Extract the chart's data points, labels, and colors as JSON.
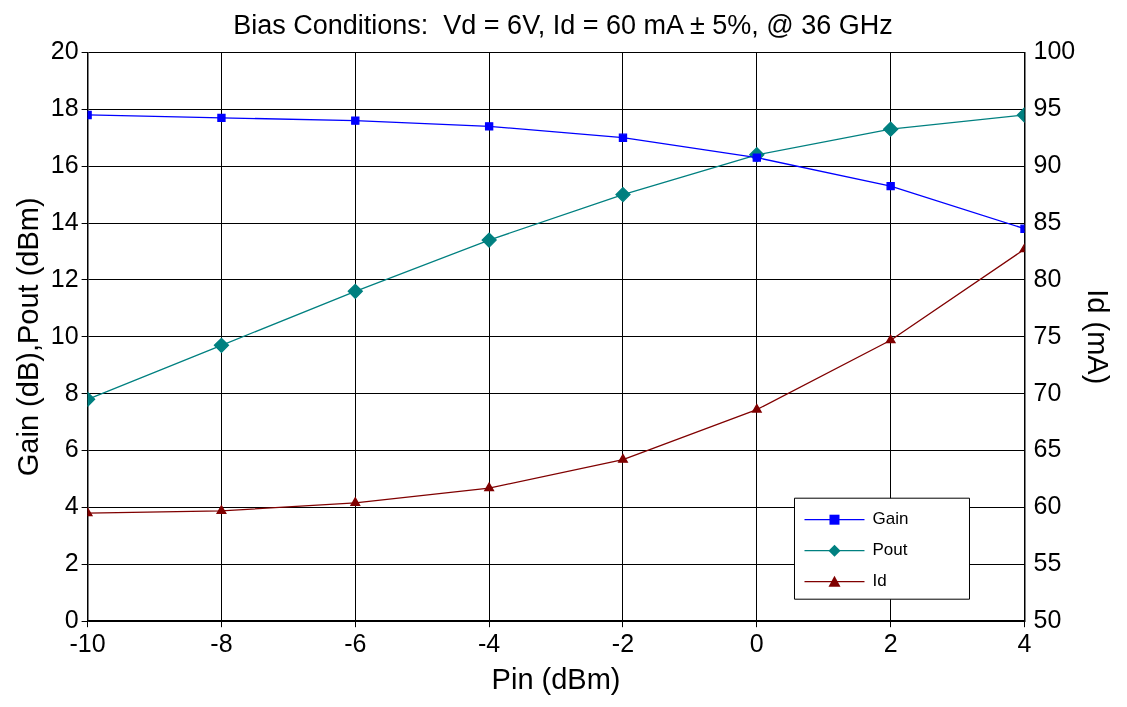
{
  "chart_data": {
    "type": "line",
    "title": "Bias Conditions:  Vd = 6V, Id = 60 mA ± 5%, @ 36 GHz",
    "xlabel": "Pin (dBm)",
    "ylabel": "Gain (dB),Pout (dBm)",
    "y2label": "Id (mA)",
    "x": [
      -10,
      -8,
      -6,
      -4,
      -2,
      0,
      2,
      4
    ],
    "series": [
      {
        "name": "Gain",
        "color": "#0000ff",
        "marker": "square",
        "values": [
          17.8,
          17.7,
          17.6,
          17.4,
          17.0,
          16.3,
          15.3,
          13.8
        ]
      },
      {
        "name": "Pout",
        "color": "#008080",
        "marker": "diamond",
        "values": [
          7.8,
          9.7,
          11.6,
          13.4,
          15.0,
          16.4,
          17.3,
          17.8
        ]
      },
      {
        "name": "Id",
        "color": "#800000",
        "marker": "triangle",
        "axis": "y2",
        "values": [
          59.5,
          59.7,
          60.4,
          61.7,
          64.2,
          68.6,
          74.7,
          82.7
        ]
      }
    ],
    "xlim": [
      -10,
      4
    ],
    "xticks": [
      -10,
      -8,
      -6,
      -4,
      -2,
      0,
      2,
      4
    ],
    "ylim": [
      0,
      20
    ],
    "yticks": [
      0,
      2,
      4,
      6,
      8,
      10,
      12,
      14,
      16,
      18,
      20
    ],
    "y2lim": [
      50,
      100
    ],
    "y2ticks": [
      50,
      55,
      60,
      65,
      70,
      75,
      80,
      85,
      90,
      95,
      100
    ],
    "grid": true,
    "legend": "bottom right",
    "line_style": "solid"
  }
}
